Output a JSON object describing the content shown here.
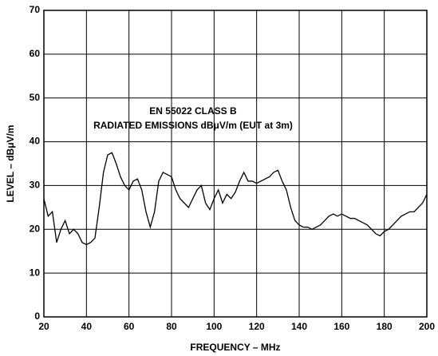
{
  "chart_data": {
    "type": "line",
    "xlabel": "FREQUENCY – MHz",
    "ylabel": "LEVEL – dBμV/m",
    "annotations": [
      "EN 55022 CLASS B",
      "RADIATED EMISSIONS dBμV/m (EUT at 3m)"
    ],
    "x": [
      20,
      22,
      24,
      26,
      28,
      30,
      32,
      34,
      36,
      38,
      40,
      42,
      44,
      46,
      48,
      50,
      52,
      54,
      56,
      58,
      60,
      62,
      64,
      66,
      68,
      70,
      72,
      74,
      76,
      78,
      80,
      82,
      84,
      86,
      88,
      90,
      92,
      94,
      96,
      98,
      100,
      102,
      104,
      106,
      108,
      110,
      112,
      114,
      116,
      118,
      120,
      122,
      124,
      126,
      128,
      130,
      132,
      134,
      136,
      138,
      140,
      142,
      144,
      146,
      148,
      150,
      152,
      154,
      156,
      158,
      160,
      162,
      164,
      166,
      168,
      170,
      172,
      174,
      176,
      178,
      180,
      182,
      184,
      186,
      188,
      190,
      192,
      194,
      196,
      198,
      200
    ],
    "series": [
      {
        "color": "#000000",
        "values": [
          27,
          23,
          24,
          17,
          20,
          22,
          19,
          20,
          19,
          17,
          16.5,
          17,
          18,
          25,
          33,
          37,
          37.5,
          35,
          32,
          30,
          29,
          31,
          31.5,
          29,
          24,
          20.5,
          24,
          31,
          33,
          32.5,
          32,
          29,
          27,
          26,
          25,
          27,
          29,
          30,
          26,
          24.5,
          27,
          29,
          26,
          28,
          27,
          28.5,
          31,
          33,
          31,
          31,
          30.5,
          31,
          31.5,
          32,
          33,
          33.5,
          31,
          29,
          25,
          22,
          21,
          20.5,
          20.5,
          20,
          20.5,
          21,
          22,
          23,
          23.5,
          23,
          23.5,
          23,
          22.5,
          22.5,
          22,
          21.5,
          21,
          20,
          19,
          18.5,
          19.5,
          20,
          21,
          22,
          23,
          23.5,
          24,
          24,
          25,
          26,
          28
        ]
      }
    ],
    "xlim": [
      20,
      200
    ],
    "xticks": [
      20,
      40,
      60,
      80,
      100,
      120,
      140,
      160,
      180,
      200
    ],
    "ylim": [
      0,
      70
    ],
    "yticks": [
      0,
      10,
      20,
      30,
      40,
      50,
      60,
      70
    ],
    "grid": true
  }
}
